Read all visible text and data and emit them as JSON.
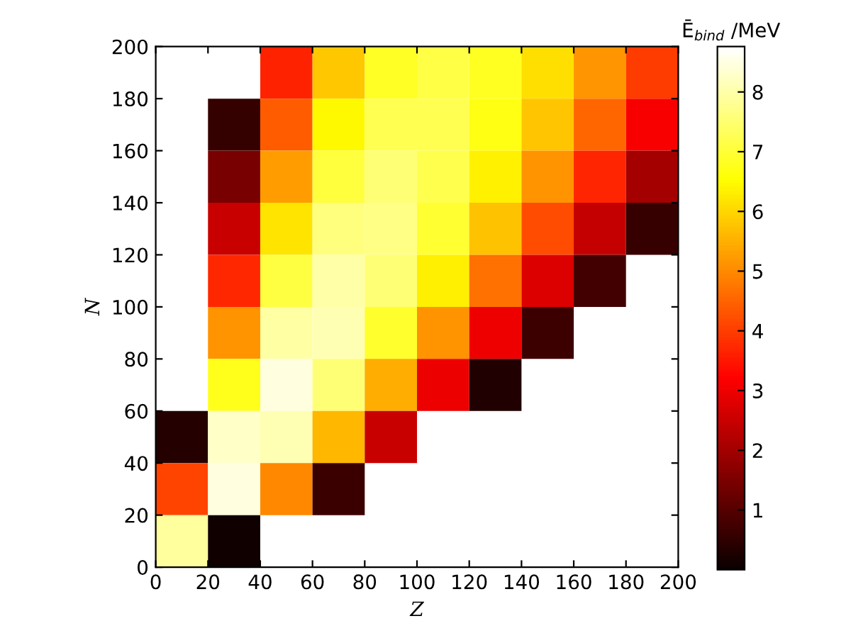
{
  "chart_data": {
    "type": "heatmap",
    "xlabel": "Z",
    "ylabel": "N",
    "clabel": "Ē$_{bind}$ /MeV",
    "cells": [
      [
        null,
        null,
        3.63,
        5.81,
        6.87,
        7.12,
        6.83,
        6.12,
        5.15,
        3.98
      ],
      [
        null,
        0.55,
        4.41,
        6.44,
        7.25,
        7.25,
        6.69,
        5.75,
        4.53,
        3.14
      ],
      [
        null,
        1.44,
        5.26,
        7.05,
        7.55,
        7.22,
        6.35,
        5.12,
        3.67,
        2.04
      ],
      [
        null,
        2.47,
        6.17,
        7.6,
        7.69,
        6.96,
        5.73,
        4.18,
        2.44,
        0.59
      ],
      [
        null,
        3.7,
        7.09,
        8.0,
        7.55,
        6.33,
        4.66,
        2.77,
        0.73,
        null
      ],
      [
        null,
        5.13,
        7.94,
        8.09,
        6.93,
        5.11,
        2.98,
        0.68,
        null,
        null
      ],
      [
        null,
        6.75,
        8.48,
        7.53,
        5.47,
        2.96,
        0.3,
        null,
        null,
        null
      ],
      [
        0.37,
        8.28,
        8.09,
        5.6,
        2.47,
        null,
        null,
        null,
        null,
        null
      ],
      [
        4.1,
        8.48,
        4.98,
        0.62,
        null,
        null,
        null,
        null,
        null,
        null
      ],
      [
        7.88,
        0.1,
        null,
        null,
        null,
        null,
        null,
        null,
        null,
        null
      ]
    ],
    "xlim": [
      0,
      200
    ],
    "ylim": [
      0,
      200
    ],
    "xticks": [
      0,
      20,
      40,
      60,
      80,
      100,
      120,
      140,
      160,
      180,
      200
    ],
    "yticks": [
      0,
      20,
      40,
      60,
      80,
      100,
      120,
      140,
      160,
      180,
      200
    ],
    "clim": [
      0,
      8.76
    ],
    "cticks": [
      1,
      2,
      3,
      4,
      5,
      6,
      7,
      8
    ],
    "grid": false
  }
}
